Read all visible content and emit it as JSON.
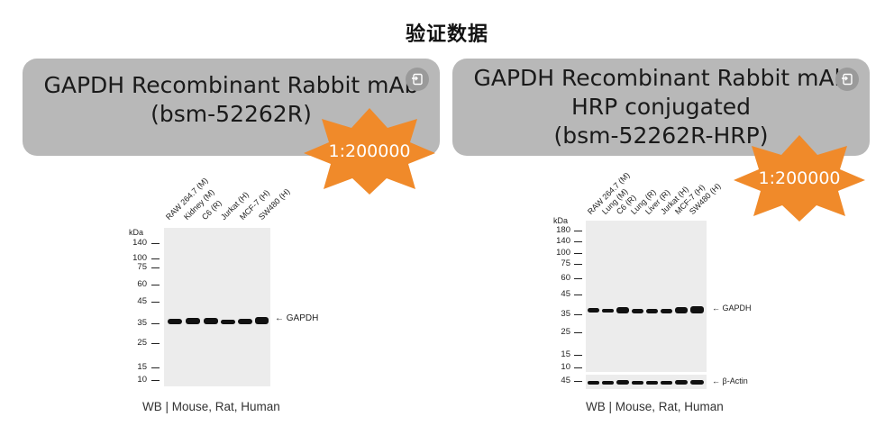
{
  "page_title": "验证数据",
  "panels": [
    {
      "header_lines": [
        "GAPDH Recombinant Rabbit mAb",
        "(bsm-52262R)"
      ],
      "dilution": "1:200000",
      "lanes": [
        "RAW 264.7 (M)",
        "Kidney (M)",
        "C6 (R)",
        "Jurkat (H)",
        "MCF-7 (H)",
        "SW480 (H)"
      ],
      "kda_label": "kDa",
      "markers": [
        "140",
        "100",
        "75",
        "60",
        "45",
        "35",
        "25",
        "15",
        "10"
      ],
      "band_labels": [
        "GAPDH"
      ],
      "caption": "WB | Mouse, Rat, Human"
    },
    {
      "header_lines": [
        "GAPDH Recombinant Rabbit mAb",
        "HRP conjugated",
        "(bsm-52262R-HRP)"
      ],
      "dilution": "1:200000",
      "lanes": [
        "RAW 264.7 (M)",
        "Lung (M)",
        "C6 (R)",
        "Lung (R)",
        "Liver (R)",
        "Jurkat (H)",
        "MCF-7 (H)",
        "SW480 (H)"
      ],
      "kda_label": "kDa",
      "markers": [
        "180",
        "140",
        "100",
        "75",
        "60",
        "45",
        "35",
        "25",
        "15",
        "10"
      ],
      "loading_marker": "45",
      "band_labels": [
        "GAPDH",
        "β-Actin"
      ],
      "caption": "WB | Mouse, Rat, Human"
    }
  ],
  "icons": {
    "header_action": "copy-icon"
  },
  "colors": {
    "header_bg": "#b8b8b8",
    "burst": "#f08a2a"
  }
}
